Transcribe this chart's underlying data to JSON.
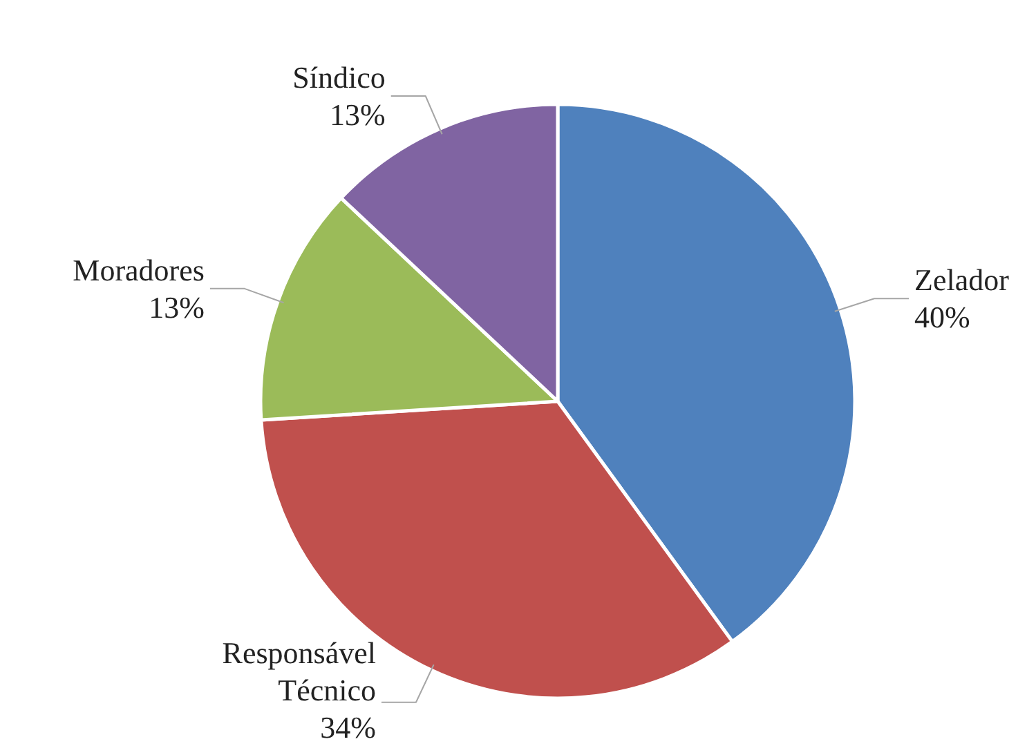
{
  "chart_data": {
    "type": "pie",
    "categories": [
      "Zelador",
      "Responsável Técnico",
      "Moradores",
      "Síndico"
    ],
    "values": [
      40,
      34,
      13,
      13
    ],
    "colors": [
      "#4f81bd",
      "#c0504d",
      "#9bbb59",
      "#8064a2"
    ],
    "value_labels": [
      "40%",
      "34%",
      "13%",
      "13%"
    ]
  }
}
